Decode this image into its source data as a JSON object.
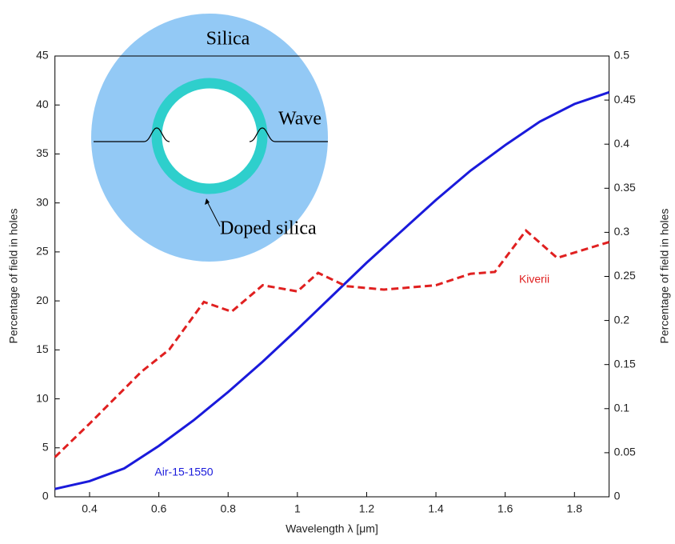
{
  "chart_data": {
    "type": "line",
    "x_label": "Wavelength λ [μm]",
    "y_label": "Percentage of field in holes",
    "y2_label": "Percentage of field in holes",
    "xlim": [
      0.3,
      1.9
    ],
    "xticks": [
      0.4,
      0.6,
      0.8,
      1,
      1.2,
      1.4,
      1.6,
      1.8
    ],
    "ylim": [
      0,
      45
    ],
    "yticks": [
      0,
      5,
      10,
      15,
      20,
      25,
      30,
      35,
      40,
      45
    ],
    "y2lim": [
      0,
      0.5
    ],
    "y2ticks": [
      0,
      0.05,
      0.1,
      0.15,
      0.2,
      0.25,
      0.3,
      0.35,
      0.4,
      0.45,
      0.5
    ],
    "series": [
      {
        "name": "Air-15-1550",
        "color": "#1a1adb",
        "style": "solid",
        "x": [
          0.3,
          0.4,
          0.5,
          0.6,
          0.7,
          0.8,
          0.9,
          1.0,
          1.1,
          1.2,
          1.3,
          1.4,
          1.5,
          1.6,
          1.7,
          1.8,
          1.9
        ],
        "values": [
          0.8,
          1.6,
          2.9,
          5.2,
          7.8,
          10.7,
          13.8,
          17.1,
          20.5,
          23.9,
          27.1,
          30.3,
          33.3,
          35.9,
          38.3,
          40.1,
          41.3
        ]
      },
      {
        "name": "Kiverii",
        "color": "#e02020",
        "style": "dashed",
        "axis": "y2",
        "x": [
          0.3,
          0.4,
          0.55,
          0.63,
          0.73,
          0.81,
          0.9,
          1.0,
          1.06,
          1.14,
          1.25,
          1.4,
          1.5,
          1.57,
          1.66,
          1.75,
          1.9
        ],
        "values": [
          0.045,
          0.083,
          0.142,
          0.167,
          0.221,
          0.21,
          0.24,
          0.233,
          0.254,
          0.239,
          0.235,
          0.24,
          0.253,
          0.255,
          0.302,
          0.271,
          0.289
        ]
      }
    ],
    "inset": {
      "labels": [
        "Silica",
        "Wave",
        "Doped silica"
      ]
    }
  }
}
